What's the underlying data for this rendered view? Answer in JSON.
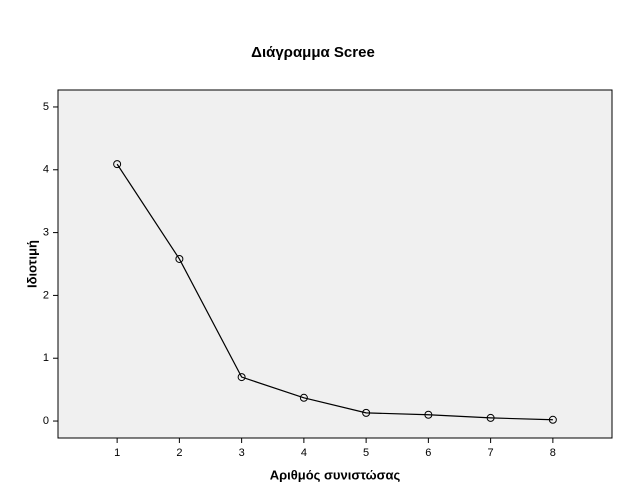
{
  "chart_data": {
    "type": "line",
    "title": "Διάγραμμα Scree",
    "x_label": "Αριθμός συνιστώσας",
    "y_label": "Ιδιοτιμή",
    "x": [
      1,
      2,
      3,
      4,
      5,
      6,
      7,
      8
    ],
    "values": [
      4.09,
      2.58,
      0.7,
      0.37,
      0.13,
      0.1,
      0.05,
      0.02
    ],
    "color": "#000000",
    "background": "#f0f0f0",
    "xlim": [
      0.05,
      8.95
    ],
    "xticks": [
      1,
      2,
      3,
      4,
      5,
      6,
      7,
      8
    ],
    "ylim": [
      -0.27,
      5.27
    ],
    "yticks": [
      0,
      1,
      2,
      3,
      4,
      5
    ]
  }
}
